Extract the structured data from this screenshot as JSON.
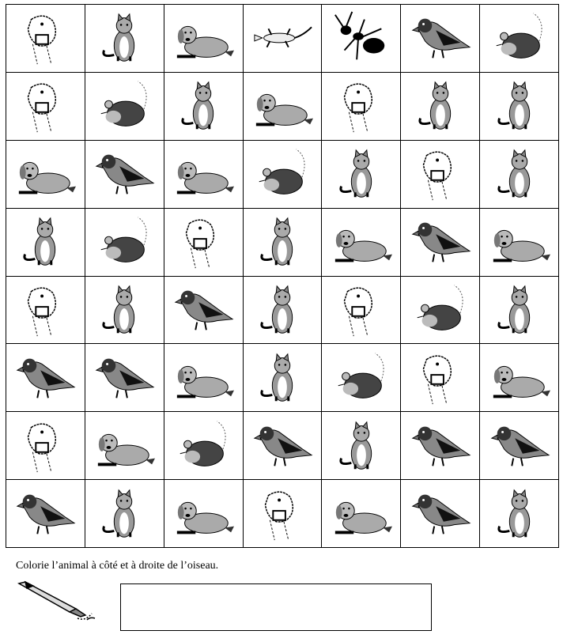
{
  "worksheet": {
    "grid": [
      [
        "camel",
        "cat",
        "dog",
        "lizard",
        "ant",
        "bird",
        "mouse"
      ],
      [
        "camel",
        "mouse",
        "cat",
        "dog",
        "camel",
        "cat",
        "cat"
      ],
      [
        "dog",
        "bird",
        "dog",
        "mouse",
        "cat",
        "camel",
        "cat"
      ],
      [
        "cat",
        "mouse",
        "camel",
        "cat",
        "dog",
        "bird",
        "dog"
      ],
      [
        "camel",
        "cat",
        "bird",
        "cat",
        "camel",
        "mouse",
        "cat"
      ],
      [
        "bird",
        "bird",
        "dog",
        "cat",
        "mouse",
        "camel",
        "dog"
      ],
      [
        "camel",
        "dog",
        "mouse",
        "bird",
        "cat",
        "bird",
        "bird"
      ],
      [
        "bird",
        "cat",
        "dog",
        "camel",
        "dog",
        "bird",
        "cat"
      ]
    ],
    "instruction": "Colorie l’animal à côté  et à droite de l’oiseau."
  }
}
